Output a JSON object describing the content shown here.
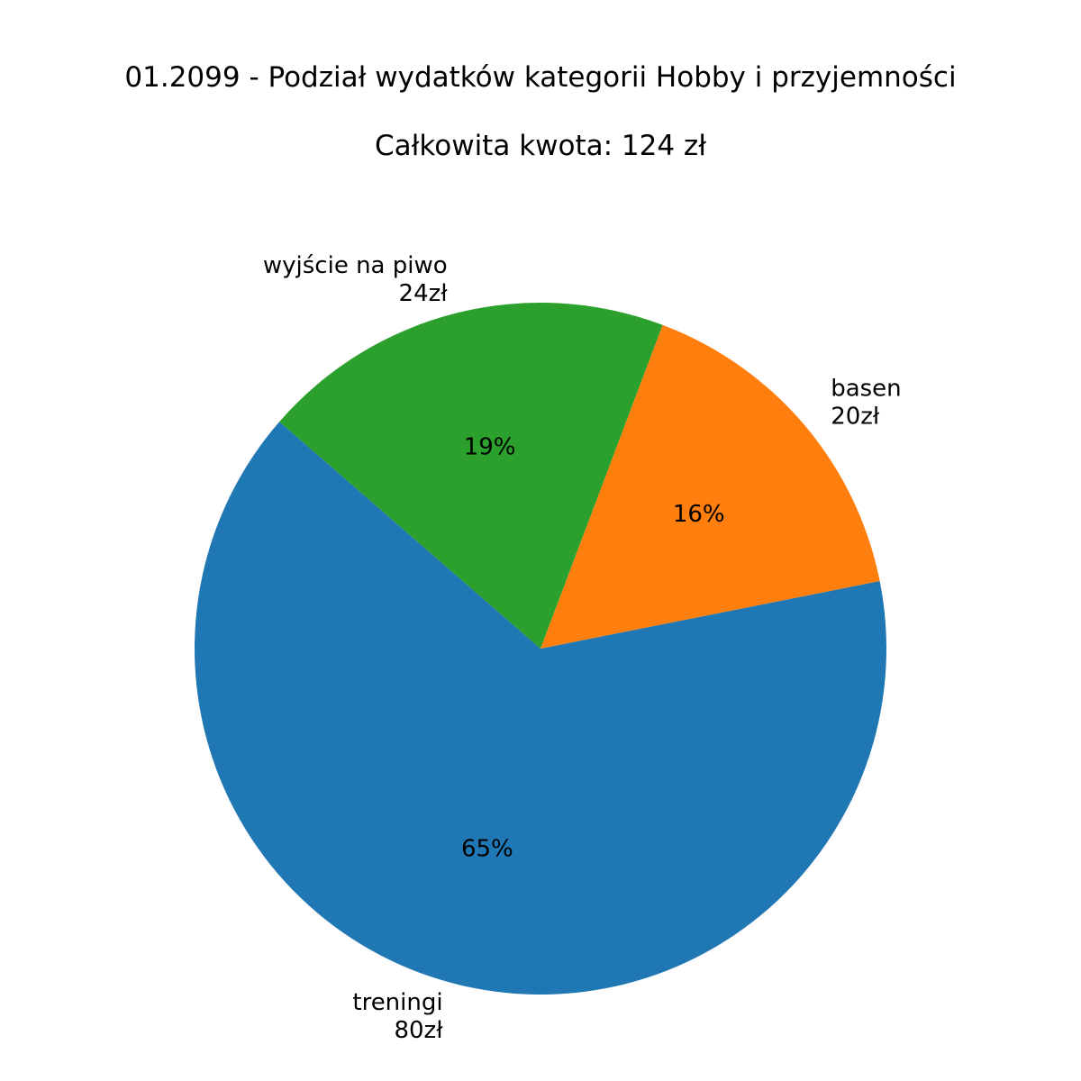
{
  "title": "01.2099 - Podział wydatków kategorii Hobby i przyjemności",
  "subtitle": "Całkowita kwota: 124 zł",
  "chart_data": {
    "type": "pie",
    "title": "01.2099 - Podział wydatków kategorii Hobby i przyjemności",
    "subtitle": "Całkowita kwota: 124 zł",
    "total": 124,
    "currency": "zł",
    "start_angle_deg": 139,
    "direction": "counterclockwise",
    "slices": [
      {
        "name": "treningi",
        "value": 80,
        "amount_label": "80zł",
        "percent_label": "65%",
        "color": "#1f77b4"
      },
      {
        "name": "basen",
        "value": 20,
        "amount_label": "20zł",
        "percent_label": "16%",
        "color": "#ff7f0e"
      },
      {
        "name": "wyjście na piwo",
        "value": 24,
        "amount_label": "24zł",
        "percent_label": "19%",
        "color": "#2ca02c"
      }
    ]
  }
}
